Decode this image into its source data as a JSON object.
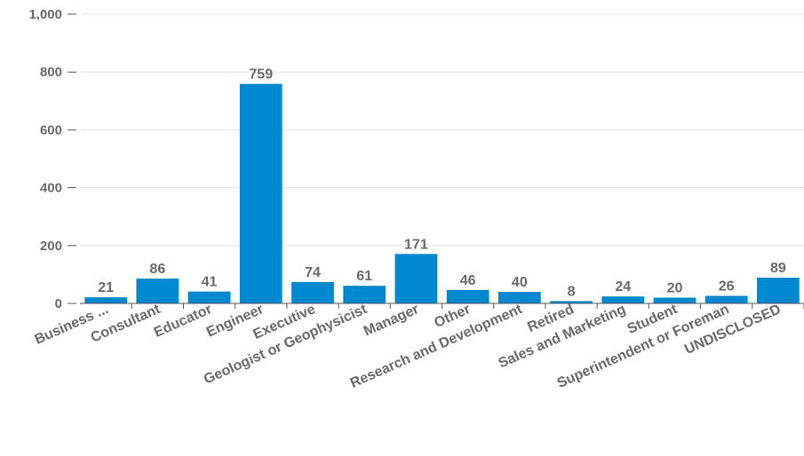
{
  "chart_data": {
    "type": "bar",
    "categories": [
      "Business ...",
      "Consultant",
      "Educator",
      "Engineer",
      "Executive",
      "Geologist or Geophysicist",
      "Manager",
      "Other",
      "Research and Development",
      "Retired",
      "Sales and Marketing",
      "Student",
      "Superintendent or Foreman",
      "UNDISCLOSED"
    ],
    "values": [
      21,
      86,
      41,
      759,
      74,
      61,
      171,
      46,
      40,
      8,
      24,
      20,
      26,
      89
    ],
    "ylim": [
      0,
      1000
    ],
    "yticks": [
      0,
      200,
      400,
      600,
      800,
      1000
    ],
    "ytick_labels": [
      "0",
      "200",
      "400",
      "600",
      "800",
      "1,000"
    ],
    "grid": true,
    "data_labels": true,
    "bar_color": "#0088d1"
  }
}
